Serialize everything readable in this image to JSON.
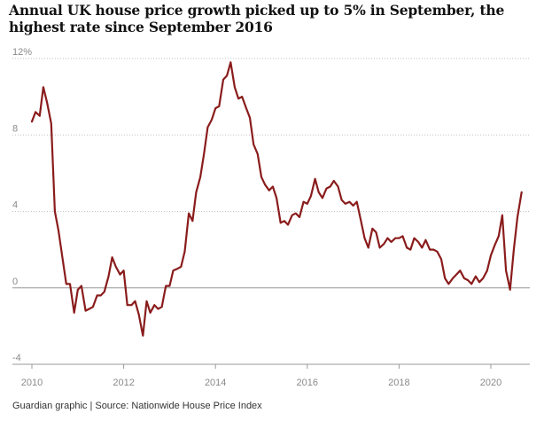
{
  "title": "Annual UK house price growth picked up to 5% in September, the highest rate since September 2016",
  "footer": "Guardian graphic | Source: Nationwide House Price Index",
  "chart_data": {
    "type": "line",
    "title": "Annual UK house price growth picked up to 5% in September, the highest rate since September 2016",
    "xlabel": "",
    "ylabel": "",
    "xlim": [
      2010,
      2020.85
    ],
    "ylim": [
      -4,
      12
    ],
    "y_ticks": [
      {
        "value": 12,
        "label": "12%"
      },
      {
        "value": 8,
        "label": "8"
      },
      {
        "value": 4,
        "label": "4"
      },
      {
        "value": 0,
        "label": "0"
      },
      {
        "value": -4,
        "label": "-4"
      }
    ],
    "x_ticks": [
      {
        "value": 2010,
        "label": "2010"
      },
      {
        "value": 2012,
        "label": "2012"
      },
      {
        "value": 2014,
        "label": "2014"
      },
      {
        "value": 2016,
        "label": "2016"
      },
      {
        "value": 2018,
        "label": "2018"
      },
      {
        "value": 2020,
        "label": "2020"
      }
    ],
    "grid": true,
    "line_color": "#8a1c1c",
    "series": [
      {
        "x": [
          2010.0,
          2010.08,
          2010.17,
          2010.25,
          2010.33,
          2010.42,
          2010.5,
          2010.58,
          2010.67,
          2010.75,
          2010.83,
          2010.92,
          2011.0,
          2011.08,
          2011.17,
          2011.25,
          2011.33,
          2011.42,
          2011.5,
          2011.58,
          2011.67,
          2011.75,
          2011.83,
          2011.92,
          2012.0,
          2012.08,
          2012.17,
          2012.25,
          2012.33,
          2012.42,
          2012.5,
          2012.58,
          2012.67,
          2012.75,
          2012.83,
          2012.92,
          2013.0,
          2013.08,
          2013.17,
          2013.25,
          2013.33,
          2013.42,
          2013.5,
          2013.58,
          2013.67,
          2013.75,
          2013.83,
          2013.92,
          2014.0,
          2014.08,
          2014.17,
          2014.25,
          2014.33,
          2014.42,
          2014.5,
          2014.58,
          2014.67,
          2014.75,
          2014.83,
          2014.92,
          2015.0,
          2015.08,
          2015.17,
          2015.25,
          2015.33,
          2015.42,
          2015.5,
          2015.58,
          2015.67,
          2015.75,
          2015.83,
          2015.92,
          2016.0,
          2016.08,
          2016.17,
          2016.25,
          2016.33,
          2016.42,
          2016.5,
          2016.58,
          2016.67,
          2016.75,
          2016.83,
          2016.92,
          2017.0,
          2017.08,
          2017.17,
          2017.25,
          2017.33,
          2017.42,
          2017.5,
          2017.58,
          2017.67,
          2017.75,
          2017.83,
          2017.92,
          2018.0,
          2018.08,
          2018.17,
          2018.25,
          2018.33,
          2018.42,
          2018.5,
          2018.58,
          2018.67,
          2018.75,
          2018.83,
          2018.92,
          2019.0,
          2019.08,
          2019.17,
          2019.25,
          2019.33,
          2019.42,
          2019.5,
          2019.58,
          2019.67,
          2019.75,
          2019.83,
          2019.92,
          2020.0,
          2020.08,
          2020.17,
          2020.25,
          2020.33,
          2020.42,
          2020.5,
          2020.58,
          2020.67
        ],
        "y": [
          8.7,
          9.2,
          9.0,
          10.5,
          9.7,
          8.6,
          4.0,
          3.0,
          1.5,
          0.2,
          0.2,
          -1.3,
          -0.1,
          0.1,
          -1.2,
          -1.1,
          -1.0,
          -0.4,
          -0.4,
          -0.2,
          0.6,
          1.6,
          1.1,
          0.7,
          0.9,
          -0.9,
          -0.9,
          -0.7,
          -1.4,
          -2.5,
          -0.7,
          -1.3,
          -0.9,
          -1.1,
          -1.0,
          0.1,
          0.1,
          0.9,
          1.0,
          1.1,
          1.9,
          3.9,
          3.5,
          5.0,
          5.8,
          7.0,
          8.4,
          8.8,
          9.4,
          9.5,
          10.9,
          11.1,
          11.8,
          10.5,
          9.9,
          10.0,
          9.4,
          8.9,
          7.5,
          7.0,
          5.8,
          5.4,
          5.1,
          5.3,
          4.7,
          3.4,
          3.5,
          3.3,
          3.8,
          3.9,
          3.7,
          4.5,
          4.4,
          4.8,
          5.7,
          5.0,
          4.7,
          5.2,
          5.3,
          5.6,
          5.3,
          4.6,
          4.4,
          4.5,
          4.3,
          4.5,
          3.5,
          2.6,
          2.1,
          3.1,
          2.9,
          2.1,
          2.3,
          2.6,
          2.4,
          2.6,
          2.6,
          2.7,
          2.1,
          2.0,
          2.6,
          2.4,
          2.1,
          2.5,
          2.0,
          2.0,
          1.9,
          1.5,
          0.5,
          0.2,
          0.5,
          0.7,
          0.9,
          0.5,
          0.4,
          0.2,
          0.6,
          0.3,
          0.5,
          0.9,
          1.7,
          2.2,
          2.7,
          3.8,
          0.9,
          -0.1,
          2.0,
          3.7,
          5.0
        ]
      }
    ]
  }
}
